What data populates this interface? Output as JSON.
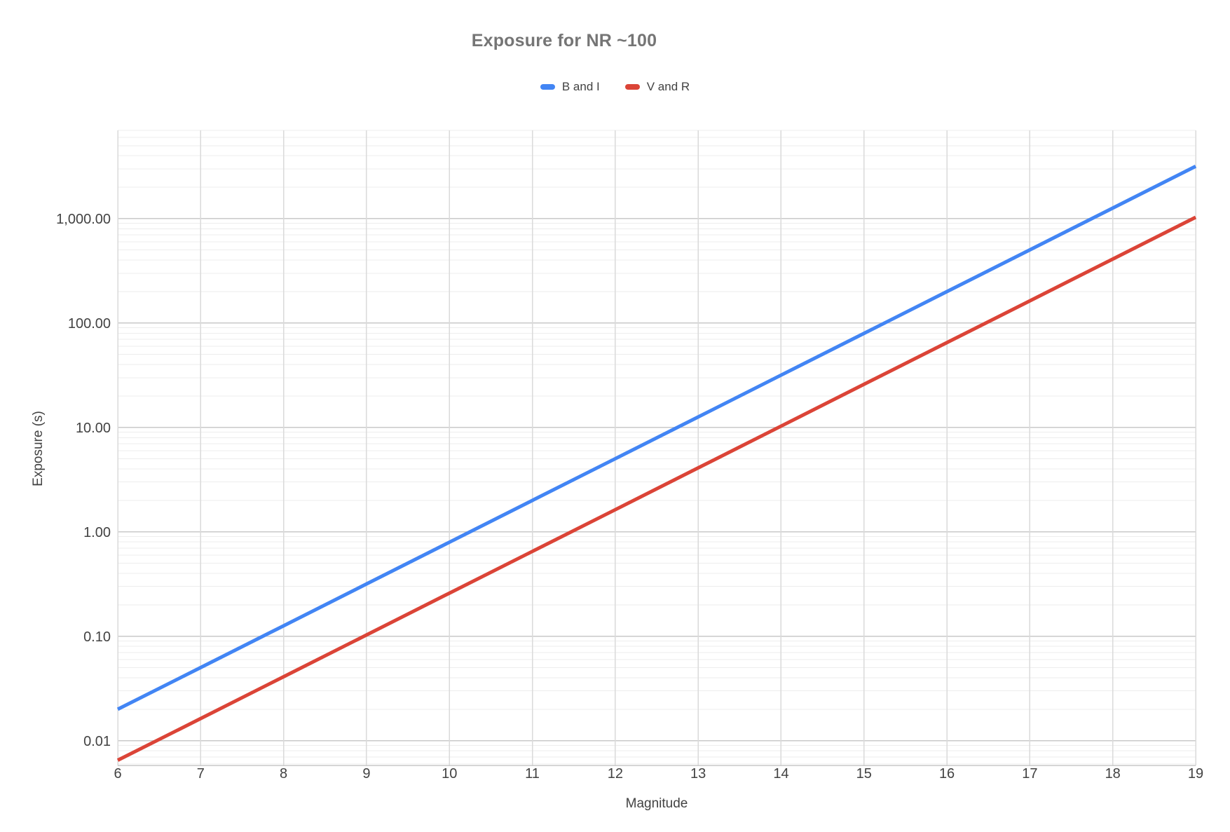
{
  "title": "Exposure for NR ~100",
  "legend": [
    {
      "label": "B and I",
      "color": "#4285f4"
    },
    {
      "label": "V and R",
      "color": "#db4437"
    }
  ],
  "axes": {
    "x": {
      "title": "Magnitude",
      "min": 6,
      "max": 19
    },
    "y": {
      "title": "Exposure (s)",
      "scale": "log"
    }
  },
  "chart_data": {
    "type": "line",
    "title": "Exposure for NR ~100",
    "xlabel": "Magnitude",
    "ylabel": "Exposure (s)",
    "y_scale": "log",
    "x_range": [
      6,
      19
    ],
    "y_range": [
      0.0058,
      7000
    ],
    "grid": true,
    "legend_position": "top",
    "x_ticks": [
      6,
      7,
      8,
      9,
      10,
      11,
      12,
      13,
      14,
      15,
      16,
      17,
      18,
      19
    ],
    "y_tick_values": [
      0.01,
      0.1,
      1,
      10,
      100,
      1000
    ],
    "y_tick_labels": [
      "0.01",
      "0.10",
      "1.00",
      "10.00",
      "100.00",
      "1,000.00"
    ],
    "x": [
      6,
      7,
      8,
      9,
      10,
      11,
      12,
      13,
      14,
      15,
      16,
      17,
      18,
      19
    ],
    "series": [
      {
        "name": "B and I",
        "color": "#4285f4",
        "values": [
          0.02,
          0.0502,
          0.126,
          0.317,
          0.796,
          2.0,
          5.02,
          12.6,
          31.7,
          79.6,
          200,
          502,
          1262,
          3170
        ]
      },
      {
        "name": "V and R",
        "color": "#db4437",
        "values": [
          0.0065,
          0.0163,
          0.041,
          0.103,
          0.259,
          0.65,
          1.63,
          4.1,
          10.3,
          25.9,
          65,
          163,
          410,
          1030
        ]
      }
    ]
  }
}
